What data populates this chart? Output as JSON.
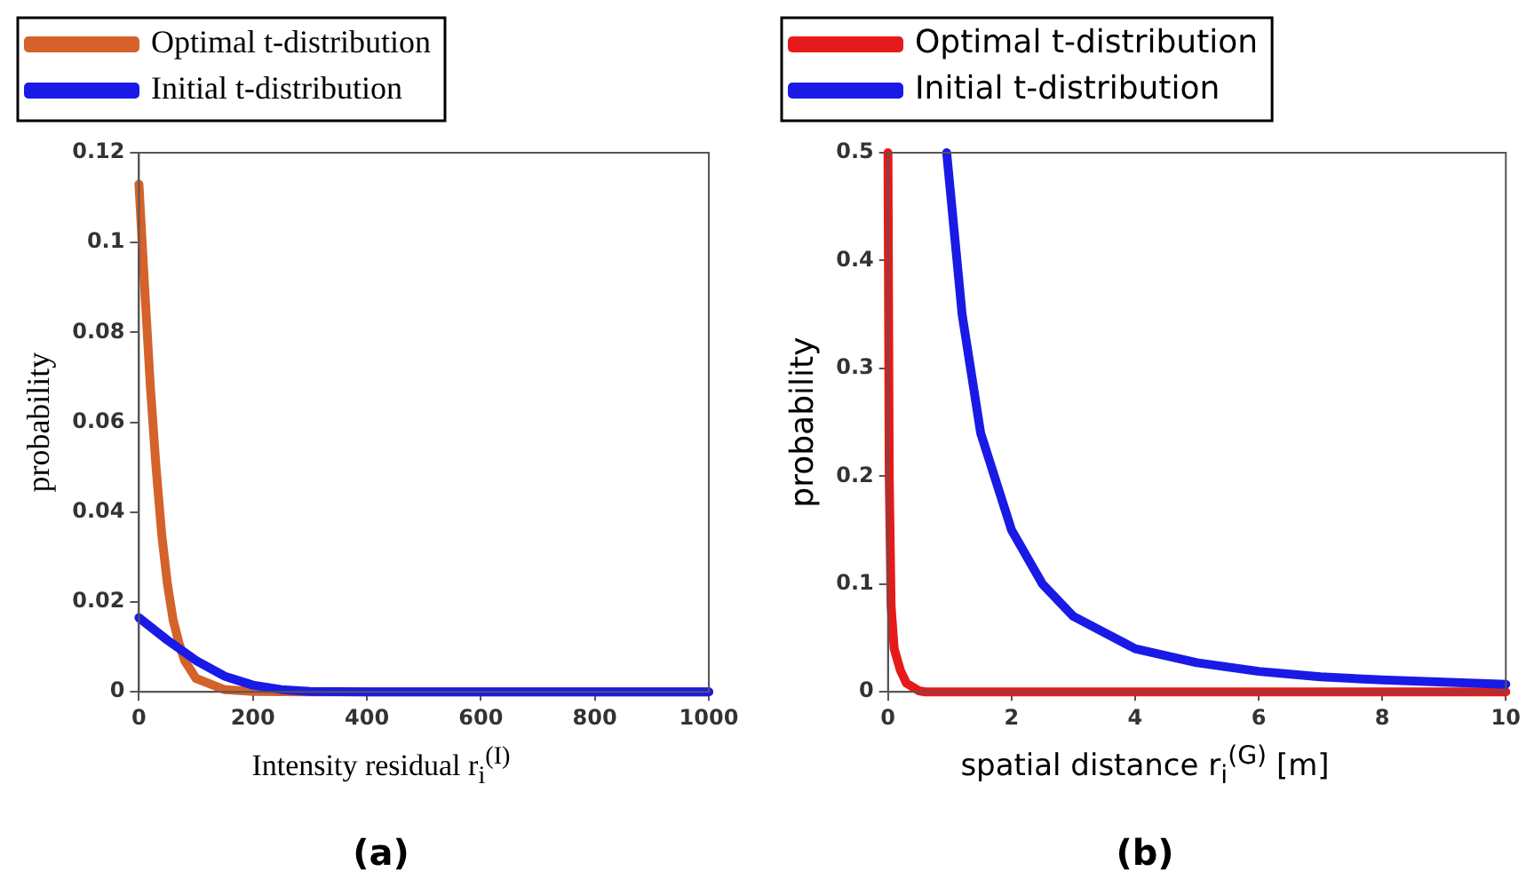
{
  "chart_data": [
    {
      "type": "line",
      "xlabel": "Intensity residual r$_{i}$$^{(I)}$",
      "ylabel": "probability",
      "annotations": [
        "(a)"
      ],
      "legend": "top",
      "xlim": [
        0,
        1000
      ],
      "xticks": [
        0,
        200,
        400,
        600,
        800,
        1000
      ],
      "ylim": [
        0,
        0.12
      ],
      "yticks": [
        0,
        0.02,
        0.04,
        0.06,
        0.08,
        0.1,
        0.12
      ],
      "grid": false,
      "marker": "none",
      "line_style": "solid",
      "series": [
        {
          "name": "Optimal t-distribution",
          "color": "#d4622a",
          "x": [
            0,
            10,
            20,
            30,
            40,
            50,
            60,
            70,
            80,
            100,
            150,
            200,
            300,
            1000
          ],
          "values": [
            0.113,
            0.09,
            0.068,
            0.05,
            0.035,
            0.024,
            0.016,
            0.011,
            0.007,
            0.003,
            0.0005,
            0.0001,
            0,
            0
          ]
        },
        {
          "name": "Initial t-distribution",
          "color": "#1a1ae6",
          "x": [
            0,
            50,
            100,
            150,
            200,
            250,
            300,
            400,
            1000
          ],
          "values": [
            0.0165,
            0.0115,
            0.007,
            0.0035,
            0.0015,
            0.0005,
            0.0001,
            0,
            0
          ]
        }
      ]
    },
    {
      "type": "line",
      "xlabel": "spatial distance r$_{i}$$^{(G)}$ [m]",
      "ylabel": "probability",
      "annotations": [
        "(b)"
      ],
      "legend": "top",
      "xlim": [
        0,
        10
      ],
      "xticks": [
        0,
        2,
        4,
        6,
        8,
        10
      ],
      "ylim": [
        0,
        0.5
      ],
      "yticks": [
        0,
        0.1,
        0.2,
        0.3,
        0.4,
        0.5
      ],
      "grid": false,
      "marker": "none",
      "line_style": "solid",
      "series": [
        {
          "name": "Optimal t-distribution",
          "color": "#e61a1a",
          "x": [
            0,
            0.02,
            0.05,
            0.1,
            0.2,
            0.3,
            0.5,
            0.6,
            10
          ],
          "values": [
            0.5,
            0.2,
            0.08,
            0.04,
            0.02,
            0.008,
            0.001,
            0,
            0
          ]
        },
        {
          "name": "Initial t-distribution",
          "color": "#1a1ae6",
          "x": [
            0.95,
            1.2,
            1.5,
            2,
            2.5,
            3,
            4,
            5,
            6,
            7,
            8,
            9,
            10
          ],
          "values": [
            0.5,
            0.35,
            0.24,
            0.15,
            0.1,
            0.07,
            0.04,
            0.027,
            0.019,
            0.014,
            0.011,
            0.009,
            0.007
          ]
        }
      ]
    }
  ]
}
